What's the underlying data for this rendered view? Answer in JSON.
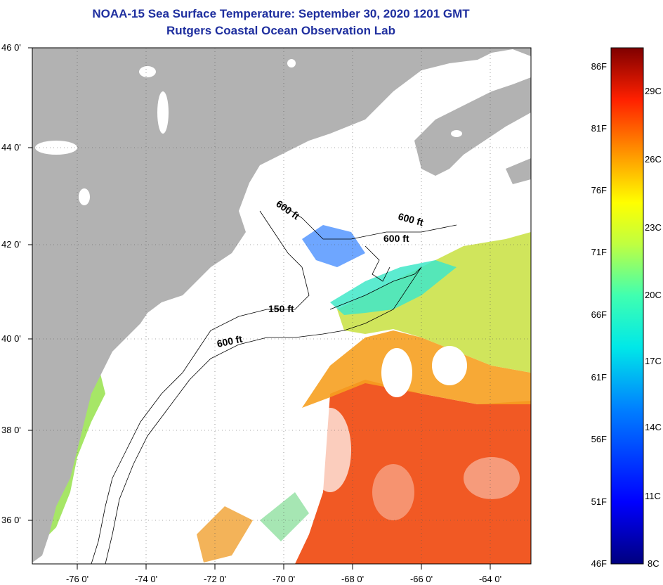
{
  "title": "NOAA-15 Sea Surface Temperature:  September 30, 2020 1201 GMT",
  "subtitle": "Rutgers Coastal Ocean Observation Lab",
  "latitude_labels": [
    "46 0'",
    "44 0'",
    "42 0'",
    "40 0'",
    "38 0'",
    "36 0'"
  ],
  "longitude_labels": [
    "-76 0'",
    "-74 0'",
    "-72 0'",
    "-70 0'",
    "-68 0'",
    "-66 0'",
    "-64 0'"
  ],
  "contour_labels": [
    "600 ft",
    "600 ft",
    "600 ft",
    "150 ft",
    "600 ft"
  ],
  "colorbar": {
    "fahrenheit_labels": [
      "86F",
      "81F",
      "76F",
      "71F",
      "66F",
      "61F",
      "56F",
      "51F",
      "46F"
    ],
    "celsius_labels": [
      "29C",
      "26C",
      "23C",
      "20C",
      "17C",
      "14C",
      "11C",
      "8C"
    ],
    "range_f": [
      46,
      86
    ],
    "range_c": [
      8,
      30
    ]
  },
  "colors": {
    "land": "#b2b2b2",
    "title": "#1f2f9f",
    "warm": "#f05018",
    "cold": "#0a1fa0"
  }
}
